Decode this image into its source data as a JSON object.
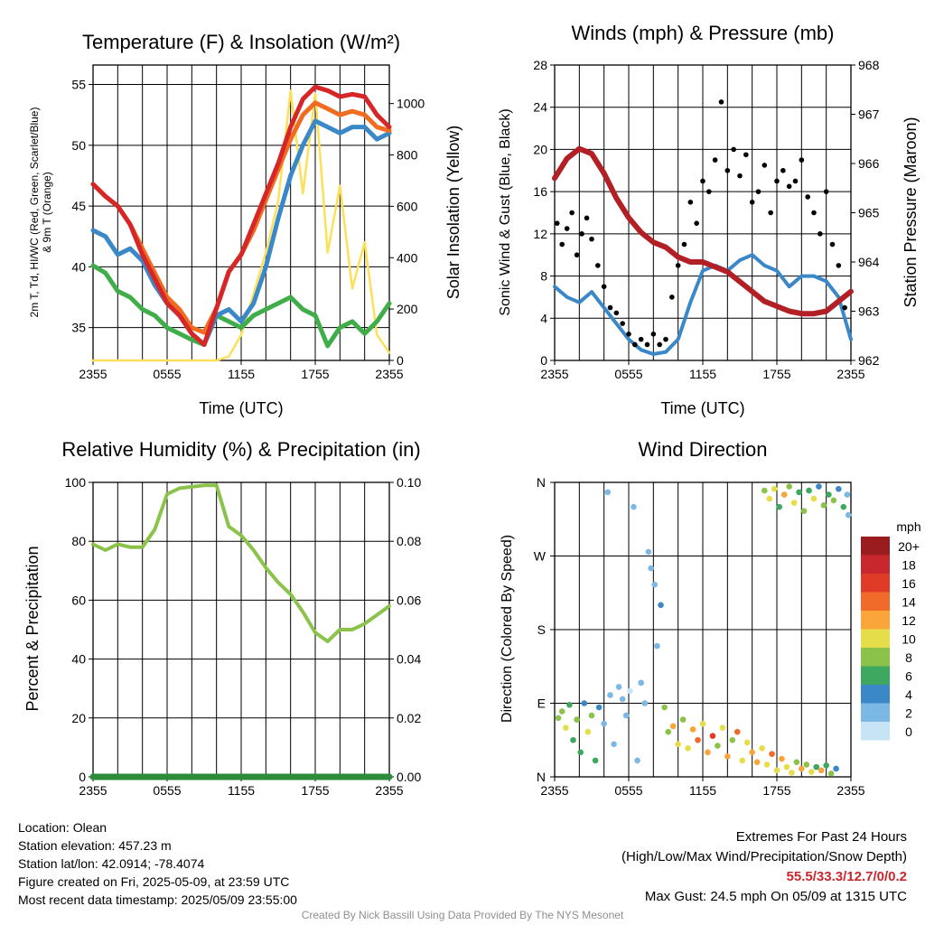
{
  "panels": {
    "temp": {
      "title": "Temperature (F) & Insolation (W/m²)",
      "xlabel": "Time (UTC)",
      "ylabel_left_line1": "2m T, Td, HI/WC (Red, Green, Scarlet/Blue)",
      "ylabel_left_line2": "& 9m T (Orange)",
      "ylabel_right": "Solar Insolation (Yellow)"
    },
    "wind": {
      "title": "Winds (mph) & Pressure (mb)",
      "xlabel": "Time (UTC)",
      "ylabel_left": "Sonic Wind & Gust (Blue, Black)",
      "ylabel_right": "Station Pressure (Maroon)"
    },
    "rh": {
      "title": "Relative Humidity (%) & Precipitation (in)",
      "ylabel_left": "Percent & Precipitation"
    },
    "dir": {
      "title": "Wind Direction",
      "ylabel_left": "Direction (Colored By Speed)",
      "legend_title": "mph"
    }
  },
  "x_ticks": [
    "2355",
    "0555",
    "1155",
    "1755",
    "2355"
  ],
  "chart_data": [
    {
      "type": "line",
      "title": "Temperature (F) & Insolation (W/m²)",
      "xlabel": "Time (UTC)",
      "x_hours": [
        0,
        1,
        2,
        3,
        4,
        5,
        6,
        7,
        8,
        9,
        10,
        11,
        12,
        13,
        14,
        15,
        16,
        17,
        18,
        19,
        20,
        21,
        22,
        23,
        24
      ],
      "ylim_left": [
        32.3,
        56.6
      ],
      "yticks_left": [
        35,
        40,
        45,
        50,
        55
      ],
      "ylim_right": [
        0,
        1150
      ],
      "yticks_right": [
        0,
        200,
        400,
        600,
        800,
        1000
      ],
      "series": [
        {
          "color": "#d62728",
          "axis": "left",
          "values": [
            46.8,
            45.8,
            45.0,
            43.5,
            41.0,
            39.0,
            37.0,
            36.0,
            34.5,
            33.6,
            36.6,
            39.6,
            41.0,
            43.5,
            46.0,
            48.5,
            51.5,
            53.8,
            54.8,
            54.5,
            54.0,
            54.2,
            54.0,
            52.5,
            51.5
          ]
        },
        {
          "color": "#ef6c21",
          "axis": "left",
          "values": [
            46.8,
            45.8,
            45.0,
            43.5,
            41.5,
            39.5,
            37.5,
            36.5,
            35.0,
            34.6,
            36.6,
            39.6,
            41.0,
            43.0,
            45.5,
            48.0,
            50.5,
            52.5,
            53.5,
            53.0,
            52.5,
            52.8,
            52.5,
            51.5,
            51.2
          ]
        },
        {
          "color": "#3b88c8",
          "axis": "left",
          "values": [
            43.0,
            42.5,
            41.0,
            41.5,
            40.5,
            38.5,
            37.0,
            36.0,
            34.5,
            33.6,
            36.0,
            36.5,
            35.5,
            37.0,
            40.0,
            44.0,
            47.5,
            50.0,
            52.0,
            51.5,
            51.0,
            51.5,
            51.5,
            50.5,
            51.0
          ]
        },
        {
          "color": "#3fae49",
          "axis": "left",
          "values": [
            40.1,
            39.5,
            38.0,
            37.5,
            36.5,
            36.0,
            35.0,
            34.5,
            34.0,
            33.6,
            36.0,
            35.5,
            35.0,
            36.0,
            36.5,
            37.0,
            37.5,
            36.5,
            36.0,
            33.5,
            35.0,
            35.5,
            34.5,
            35.5,
            37.0
          ]
        },
        {
          "color": "#fde059",
          "axis": "right",
          "values": [
            0,
            0,
            0,
            0,
            0,
            0,
            0,
            0,
            0,
            0,
            0,
            15,
            100,
            260,
            420,
            620,
            1050,
            650,
            1040,
            420,
            680,
            280,
            460,
            100,
            30
          ]
        }
      ]
    },
    {
      "type": "line",
      "title": "Winds (mph) & Pressure (mb)",
      "xlabel": "Time (UTC)",
      "x_hours": [
        0,
        1,
        2,
        3,
        4,
        5,
        6,
        7,
        8,
        9,
        10,
        11,
        12,
        13,
        14,
        15,
        16,
        17,
        18,
        19,
        20,
        21,
        22,
        23,
        24
      ],
      "ylim_left": [
        0,
        28
      ],
      "yticks_left": [
        0,
        4,
        8,
        12,
        16,
        20,
        24,
        28
      ],
      "ylim_right": [
        962,
        968
      ],
      "yticks_right": [
        962,
        963,
        964,
        965,
        966,
        967,
        968
      ],
      "series": [
        {
          "color": "#3b88c8",
          "axis": "left",
          "values": [
            7.0,
            6.0,
            5.5,
            6.5,
            5.0,
            3.5,
            2.0,
            1.0,
            0.6,
            0.8,
            2.0,
            5.5,
            8.5,
            9.0,
            8.5,
            9.5,
            10.0,
            9.0,
            8.5,
            7.0,
            8.0,
            8.0,
            7.5,
            6.0,
            2.0
          ]
        },
        {
          "color": "#b21f24",
          "axis": "right",
          "values": [
            965.7,
            966.1,
            966.3,
            966.2,
            965.8,
            965.3,
            964.9,
            964.6,
            964.4,
            964.3,
            964.1,
            964.0,
            964.0,
            963.9,
            963.8,
            963.6,
            963.4,
            963.2,
            963.1,
            963.0,
            962.95,
            962.95,
            963.0,
            963.2,
            963.4
          ]
        },
        {
          "type": "scatter",
          "color": "#000000",
          "axis": "left",
          "x_hours": [
            0.2,
            0.6,
            1.0,
            1.4,
            1.8,
            2.2,
            2.6,
            3.0,
            3.5,
            4.0,
            4.5,
            5.0,
            5.5,
            6.0,
            6.5,
            7.0,
            7.5,
            8.0,
            8.5,
            9.0,
            9.5,
            10.0,
            10.5,
            11.0,
            11.5,
            12.0,
            12.5,
            13.0,
            13.5,
            14.0,
            14.5,
            15.0,
            15.5,
            16.0,
            16.5,
            17.0,
            17.5,
            18.0,
            18.5,
            19.0,
            19.5,
            20.0,
            20.5,
            21.0,
            21.5,
            22.0,
            22.5,
            23.0,
            23.5
          ],
          "values": [
            13.0,
            11.0,
            12.5,
            14.0,
            10.0,
            12.0,
            13.5,
            11.5,
            9.0,
            7.0,
            5.0,
            4.5,
            3.5,
            2.5,
            1.5,
            2.0,
            1.5,
            2.5,
            1.5,
            2.0,
            6.0,
            9.0,
            11.0,
            15.0,
            13.0,
            17.0,
            16.0,
            19.0,
            24.5,
            18.0,
            20.0,
            17.5,
            19.5,
            15.0,
            16.0,
            18.5,
            14.0,
            17.0,
            18.0,
            16.5,
            17.0,
            19.0,
            15.5,
            14.0,
            12.0,
            16.0,
            11.0,
            9.0,
            5.0
          ]
        }
      ]
    },
    {
      "type": "line",
      "title": "Relative Humidity (%) & Precipitation (in)",
      "x_hours": [
        0,
        1,
        2,
        3,
        4,
        5,
        6,
        7,
        8,
        9,
        10,
        11,
        12,
        13,
        14,
        15,
        16,
        17,
        18,
        19,
        20,
        21,
        22,
        23,
        24
      ],
      "ylim_left": [
        0,
        100
      ],
      "yticks_left": [
        0,
        20,
        40,
        60,
        80,
        100
      ],
      "ylim_right": [
        0,
        0.1
      ],
      "yticks_right": [
        "0.00",
        "0.02",
        "0.04",
        "0.06",
        "0.08",
        "0.10"
      ],
      "series": [
        {
          "color": "#8bc34a",
          "axis": "left",
          "values": [
            79,
            77,
            79,
            78,
            78,
            84,
            96,
            98,
            98.5,
            99,
            99,
            85,
            82,
            77,
            71,
            66,
            62,
            56,
            49,
            46,
            50,
            50,
            52,
            55,
            58
          ]
        },
        {
          "color": "#2e8b3a",
          "axis": "right",
          "values": [
            0,
            0,
            0,
            0,
            0,
            0,
            0,
            0,
            0,
            0,
            0,
            0,
            0,
            0,
            0,
            0,
            0,
            0,
            0,
            0,
            0,
            0,
            0,
            0,
            0
          ]
        }
      ]
    },
    {
      "type": "scatter",
      "title": "Wind Direction",
      "ylabel": "Direction (Colored By Speed)",
      "ytick_labels": [
        "N",
        "E",
        "S",
        "W",
        "N"
      ],
      "ylim_deg": [
        0,
        360
      ],
      "legend_labels": [
        "20+",
        "18",
        "16",
        "14",
        "12",
        "10",
        "8",
        "6",
        "4",
        "2",
        "0"
      ],
      "legend_colors": [
        "#9b1c1f",
        "#c8272d",
        "#e03b26",
        "#f06a2a",
        "#f9a53a",
        "#e6dd4a",
        "#8bc34a",
        "#3fa860",
        "#3b88c8",
        "#7cb8e4",
        "#c6e4f5"
      ],
      "points": [
        {
          "h": 0.3,
          "d": 72,
          "s": 8
        },
        {
          "h": 0.6,
          "d": 80,
          "s": 7
        },
        {
          "h": 0.9,
          "d": 60,
          "s": 10
        },
        {
          "h": 1.2,
          "d": 88,
          "s": 6
        },
        {
          "h": 1.5,
          "d": 45,
          "s": 5
        },
        {
          "h": 1.8,
          "d": 70,
          "s": 8
        },
        {
          "h": 2.1,
          "d": 30,
          "s": 6
        },
        {
          "h": 2.4,
          "d": 90,
          "s": 4
        },
        {
          "h": 2.7,
          "d": 55,
          "s": 9
        },
        {
          "h": 3.0,
          "d": 75,
          "s": 7
        },
        {
          "h": 3.3,
          "d": 20,
          "s": 5
        },
        {
          "h": 3.6,
          "d": 85,
          "s": 3
        },
        {
          "h": 4.0,
          "d": 65,
          "s": 2
        },
        {
          "h": 4.3,
          "d": 348,
          "s": 2
        },
        {
          "h": 4.5,
          "d": 100,
          "s": 1
        },
        {
          "h": 4.8,
          "d": 40,
          "s": 2
        },
        {
          "h": 5.2,
          "d": 110,
          "s": 1
        },
        {
          "h": 5.5,
          "d": 95,
          "s": 2
        },
        {
          "h": 5.8,
          "d": 75,
          "s": 1
        },
        {
          "h": 6.1,
          "d": 105,
          "s": 0
        },
        {
          "h": 6.4,
          "d": 330,
          "s": 1
        },
        {
          "h": 6.7,
          "d": 20,
          "s": 2
        },
        {
          "h": 7.0,
          "d": 115,
          "s": 1
        },
        {
          "h": 7.3,
          "d": 90,
          "s": 1
        },
        {
          "h": 7.6,
          "d": 275,
          "s": 1
        },
        {
          "h": 7.8,
          "d": 255,
          "s": 1
        },
        {
          "h": 8.1,
          "d": 235,
          "s": 1
        },
        {
          "h": 8.3,
          "d": 160,
          "s": 1
        },
        {
          "h": 8.6,
          "d": 210,
          "s": 4
        },
        {
          "h": 8.9,
          "d": 85,
          "s": 8
        },
        {
          "h": 9.2,
          "d": 55,
          "s": 7
        },
        {
          "h": 9.6,
          "d": 62,
          "s": 12
        },
        {
          "h": 10.0,
          "d": 40,
          "s": 9
        },
        {
          "h": 10.4,
          "d": 70,
          "s": 8
        },
        {
          "h": 10.8,
          "d": 35,
          "s": 10
        },
        {
          "h": 11.2,
          "d": 58,
          "s": 11
        },
        {
          "h": 11.6,
          "d": 45,
          "s": 13
        },
        {
          "h": 12.0,
          "d": 65,
          "s": 9
        },
        {
          "h": 12.4,
          "d": 30,
          "s": 12
        },
        {
          "h": 12.8,
          "d": 50,
          "s": 15
        },
        {
          "h": 13.2,
          "d": 38,
          "s": 8
        },
        {
          "h": 13.6,
          "d": 60,
          "s": 10
        },
        {
          "h": 14.0,
          "d": 25,
          "s": 11
        },
        {
          "h": 14.4,
          "d": 45,
          "s": 7
        },
        {
          "h": 14.8,
          "d": 55,
          "s": 13
        },
        {
          "h": 15.2,
          "d": 20,
          "s": 9
        },
        {
          "h": 15.6,
          "d": 42,
          "s": 10
        },
        {
          "h": 16.0,
          "d": 30,
          "s": 11
        },
        {
          "h": 16.4,
          "d": 18,
          "s": 12
        },
        {
          "h": 16.8,
          "d": 35,
          "s": 9
        },
        {
          "h": 17.2,
          "d": 15,
          "s": 10
        },
        {
          "h": 17.6,
          "d": 28,
          "s": 13
        },
        {
          "h": 18.0,
          "d": 8,
          "s": 10
        },
        {
          "h": 18.4,
          "d": 22,
          "s": 11
        },
        {
          "h": 18.8,
          "d": 12,
          "s": 9
        },
        {
          "h": 19.2,
          "d": 5,
          "s": 10
        },
        {
          "h": 19.6,
          "d": 18,
          "s": 8
        },
        {
          "h": 20.0,
          "d": 10,
          "s": 12
        },
        {
          "h": 20.4,
          "d": 15,
          "s": 7
        },
        {
          "h": 20.8,
          "d": 6,
          "s": 9
        },
        {
          "h": 21.2,
          "d": 12,
          "s": 6
        },
        {
          "h": 21.6,
          "d": 8,
          "s": 11
        },
        {
          "h": 22.0,
          "d": 14,
          "s": 5
        },
        {
          "h": 22.4,
          "d": 4,
          "s": 8
        },
        {
          "h": 22.8,
          "d": 10,
          "s": 4
        },
        {
          "h": 17.0,
          "d": 350,
          "s": 8
        },
        {
          "h": 17.4,
          "d": 340,
          "s": 10
        },
        {
          "h": 17.8,
          "d": 352,
          "s": 9
        },
        {
          "h": 18.2,
          "d": 330,
          "s": 6
        },
        {
          "h": 18.6,
          "d": 345,
          "s": 11
        },
        {
          "h": 19.0,
          "d": 355,
          "s": 7
        },
        {
          "h": 19.4,
          "d": 335,
          "s": 9
        },
        {
          "h": 19.8,
          "d": 348,
          "s": 5
        },
        {
          "h": 20.2,
          "d": 325,
          "s": 8
        },
        {
          "h": 20.6,
          "d": 350,
          "s": 6
        },
        {
          "h": 21.0,
          "d": 340,
          "s": 9
        },
        {
          "h": 21.4,
          "d": 355,
          "s": 4
        },
        {
          "h": 21.8,
          "d": 332,
          "s": 7
        },
        {
          "h": 22.2,
          "d": 345,
          "s": 5
        },
        {
          "h": 22.6,
          "d": 338,
          "s": 8
        },
        {
          "h": 23.0,
          "d": 352,
          "s": 4
        },
        {
          "h": 23.4,
          "d": 330,
          "s": 6
        },
        {
          "h": 23.7,
          "d": 345,
          "s": 2
        },
        {
          "h": 23.8,
          "d": 320,
          "s": 1
        }
      ]
    }
  ],
  "footer": {
    "location": "Location: Olean",
    "elevation": "Station elevation: 457.23 m",
    "latlon": "Station lat/lon: 42.0914; -78.4074",
    "created": "Figure created on Fri, 2025-05-09, at 23:59 UTC",
    "recent": "Most recent data timestamp: 2025/05/09 23:55:00",
    "extremes_title": "Extremes For Past 24 Hours",
    "extremes_sub": "(High/Low/Max Wind/Precipitation/Snow Depth)",
    "extremes_values": "55.5/33.3/12.7/0/0.2",
    "max_gust": "Max Gust: 24.5 mph On 05/09 at 1315 UTC",
    "credit": "Created By Nick Bassill Using Data Provided By The NYS Mesonet"
  }
}
